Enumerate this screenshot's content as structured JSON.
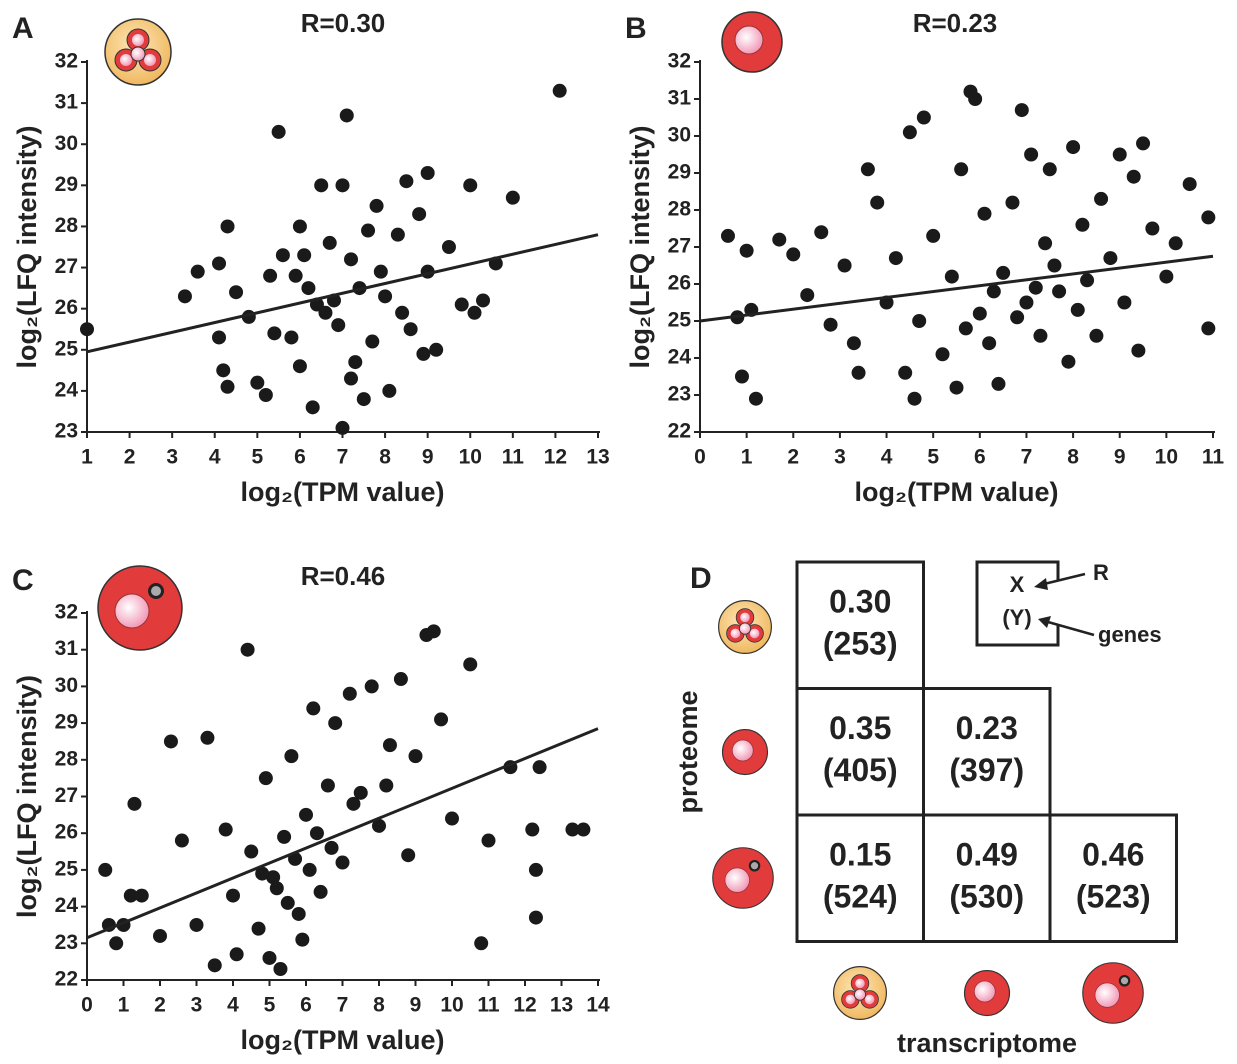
{
  "chart_data": [
    {
      "type": "scatter",
      "label": "A",
      "title": "R=0.30",
      "x_label": "log₂(TPM value)",
      "y_label": "log₂(LFQ intensity)",
      "color": "#1a1a1a",
      "xlim": [
        1,
        13
      ],
      "ylim": [
        23,
        32
      ],
      "xticks": [
        1,
        2,
        3,
        4,
        5,
        6,
        7,
        8,
        9,
        10,
        11,
        12,
        13
      ],
      "yticks": [
        23,
        24,
        25,
        26,
        27,
        28,
        29,
        30,
        31,
        32
      ],
      "x": [
        1,
        12.1,
        5.5,
        7.1,
        3.3,
        3.6,
        4.1,
        4.3,
        4.1,
        4.2,
        4.3,
        4.5,
        4.8,
        5,
        5.2,
        5.3,
        5.6,
        5.8,
        6,
        6,
        6.2,
        6.3,
        6.5,
        6.6,
        6.8,
        7,
        7,
        7.2,
        7.3,
        7.5,
        7.6,
        7.8,
        8,
        8.1,
        8.3,
        8.5,
        8.6,
        8.8,
        9,
        9,
        9.2,
        9.5,
        9.8,
        10,
        10.1,
        10.3,
        10.6,
        11,
        6.4,
        6.9,
        7.4,
        7.7,
        6.1,
        5.9,
        8.4,
        7.9,
        5.4,
        6.7,
        8.9,
        7.2
      ],
      "y": [
        25.5,
        31.3,
        30.3,
        30.7,
        26.3,
        26.9,
        27.1,
        28,
        25.3,
        24.5,
        24.1,
        26.4,
        25.8,
        24.2,
        23.9,
        26.8,
        27.3,
        25.3,
        28,
        24.6,
        26.5,
        23.6,
        29,
        25.9,
        26.2,
        23.1,
        29,
        27.2,
        24.7,
        23.8,
        27.9,
        28.5,
        26.3,
        24,
        27.8,
        29.1,
        25.5,
        28.3,
        29.3,
        26.9,
        25,
        27.5,
        26.1,
        29,
        25.9,
        26.2,
        27.1,
        28.7,
        26.1,
        25.6,
        26.5,
        25.2,
        27.3,
        26.8,
        25.9,
        26.9,
        25.4,
        27.6,
        24.9,
        24.3
      ],
      "trend": {
        "x": [
          1,
          13
        ],
        "y": [
          24.95,
          27.8
        ]
      }
    },
    {
      "type": "scatter",
      "label": "B",
      "title": "R=0.23",
      "x_label": "log₂(TPM value)",
      "y_label": "log₂(LFQ intensity)",
      "color": "#1a1a1a",
      "xlim": [
        0,
        11
      ],
      "ylim": [
        22,
        32
      ],
      "xticks": [
        0,
        1,
        2,
        3,
        4,
        5,
        6,
        7,
        8,
        9,
        10,
        11
      ],
      "yticks": [
        22,
        23,
        24,
        25,
        26,
        27,
        28,
        29,
        30,
        31,
        32
      ],
      "x": [
        0.6,
        0.8,
        0.9,
        1,
        1.2,
        1.1,
        1.7,
        2,
        2.3,
        2.6,
        2.8,
        3.1,
        3.3,
        3.4,
        3.6,
        3.8,
        4,
        4.2,
        4.4,
        4.5,
        4.6,
        4.7,
        4.8,
        5,
        5.2,
        5.4,
        5.5,
        5.6,
        5.8,
        5.9,
        6,
        6.1,
        6.2,
        6.4,
        6.5,
        6.7,
        6.9,
        7,
        7.1,
        7.3,
        7.4,
        7.5,
        7.7,
        7.9,
        8,
        8.2,
        8.3,
        8.5,
        8.6,
        8.8,
        9,
        9.1,
        9.3,
        9.5,
        9.4,
        9.7,
        10,
        10.2,
        10.5,
        10.9,
        10.9,
        6.8,
        7.2,
        7.6,
        8.1,
        6.3,
        5.7
      ],
      "y": [
        27.3,
        25.1,
        23.5,
        26.9,
        22.9,
        25.3,
        27.2,
        26.8,
        25.7,
        27.4,
        24.9,
        26.5,
        24.4,
        23.6,
        29.1,
        28.2,
        25.5,
        26.7,
        23.6,
        30.1,
        22.9,
        25,
        30.5,
        27.3,
        24.1,
        26.2,
        23.2,
        29.1,
        31.2,
        31,
        25.2,
        27.9,
        24.4,
        23.3,
        26.3,
        28.2,
        30.7,
        25.5,
        29.5,
        24.6,
        27.1,
        29.1,
        25.8,
        23.9,
        29.7,
        27.6,
        26.1,
        24.6,
        28.3,
        26.7,
        29.5,
        25.5,
        28.9,
        29.8,
        24.2,
        27.5,
        26.2,
        27.1,
        28.7,
        27.8,
        24.8,
        25.1,
        25.9,
        26.5,
        25.3,
        25.8,
        24.8
      ],
      "trend": {
        "x": [
          0,
          11
        ],
        "y": [
          25.0,
          26.75
        ]
      }
    },
    {
      "type": "scatter",
      "label": "C",
      "title": "R=0.46",
      "x_label": "log₂(TPM value)",
      "y_label": "log₂(LFQ intensity)",
      "color": "#1a1a1a",
      "xlim": [
        0,
        14
      ],
      "ylim": [
        22,
        32
      ],
      "xticks": [
        0,
        1,
        2,
        3,
        4,
        5,
        6,
        7,
        8,
        9,
        10,
        11,
        12,
        13,
        14
      ],
      "yticks": [
        22,
        23,
        24,
        25,
        26,
        27,
        28,
        29,
        30,
        31,
        32
      ],
      "x": [
        0.5,
        0.6,
        0.8,
        1,
        1.2,
        1.3,
        1.5,
        2,
        2.3,
        2.6,
        3,
        3.3,
        3.5,
        3.8,
        4,
        4.1,
        4.4,
        4.5,
        4.7,
        4.9,
        5,
        5.1,
        5.3,
        5.4,
        5.6,
        5.8,
        6,
        6.2,
        6.4,
        6.6,
        6.8,
        7,
        7.2,
        7.5,
        7.8,
        8,
        8.3,
        8.6,
        8.8,
        9,
        9.3,
        9.5,
        9.7,
        10,
        10.5,
        10.8,
        11,
        11.6,
        12.2,
        12.3,
        12.3,
        12.4,
        13.3,
        13.6,
        5.2,
        5.5,
        5.7,
        6.1,
        4.8,
        6.3,
        6.7,
        7.3,
        5.9,
        8.2
      ],
      "y": [
        25,
        23.5,
        23,
        23.5,
        24.3,
        26.8,
        24.3,
        23.2,
        28.5,
        25.8,
        23.5,
        28.6,
        22.4,
        26.1,
        24.3,
        22.7,
        31,
        25.5,
        23.4,
        27.5,
        22.6,
        24.8,
        22.3,
        25.9,
        28.1,
        23.8,
        26.5,
        29.4,
        24.4,
        27.3,
        29,
        25.2,
        29.8,
        27.1,
        30,
        26.2,
        28.4,
        30.2,
        25.4,
        28.1,
        31.4,
        31.5,
        29.1,
        26.4,
        30.6,
        23,
        25.8,
        27.8,
        26.1,
        25,
        23.7,
        27.8,
        26.1,
        26.1,
        24.5,
        24.1,
        25.3,
        25,
        24.9,
        26,
        25.6,
        26.8,
        23.1,
        27.3
      ],
      "trend": {
        "x": [
          0,
          14
        ],
        "y": [
          23.15,
          28.85
        ]
      }
    }
  ],
  "matrix": {
    "label": "D",
    "row_label": "proteome",
    "col_label": "transcriptome",
    "cells": [
      [
        {
          "r": "0.30",
          "n": "(253)"
        }
      ],
      [
        {
          "r": "0.35",
          "n": "(405)"
        },
        {
          "r": "0.23",
          "n": "(397)"
        }
      ],
      [
        {
          "r": "0.15",
          "n": "(524)"
        },
        {
          "r": "0.49",
          "n": "(530)"
        },
        {
          "r": "0.46",
          "n": "(523)"
        }
      ]
    ],
    "legend": {
      "x": "X",
      "y": "(Y)",
      "r": "R",
      "genes": "genes"
    }
  }
}
